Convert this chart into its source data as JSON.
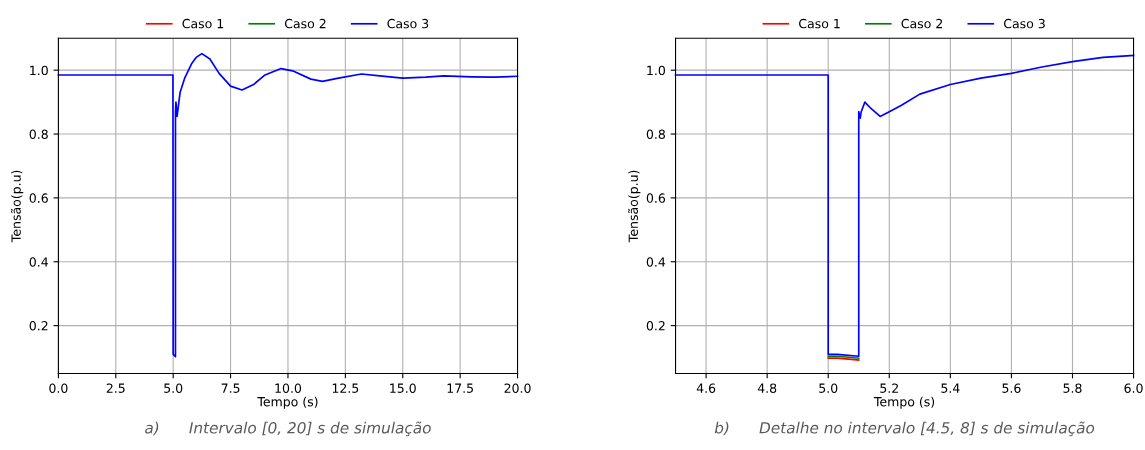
{
  "chart_data": [
    {
      "type": "line",
      "xlabel": "Tempo (s)",
      "ylabel": "Tensão(p.u)",
      "legend": "top",
      "grid": true,
      "line_style": "solid",
      "marker": "none",
      "xlim": [
        0,
        20
      ],
      "xticks": [
        {
          "value": 0,
          "label": "0.0"
        },
        2.5,
        {
          "value": 5,
          "label": "5.0"
        },
        7.5,
        {
          "value": 10,
          "label": "10.0"
        },
        12.5,
        {
          "value": 15,
          "label": "15.0"
        },
        17.5,
        {
          "value": 20,
          "label": "20.0"
        }
      ],
      "ylim": [
        0.05,
        1.1
      ],
      "yticks": [
        0.2,
        0.4,
        0.6,
        0.8,
        {
          "value": 1,
          "label": "1.0"
        }
      ],
      "x": [
        0,
        4.99,
        5.0,
        5.1,
        5.1,
        5.12,
        5.17,
        5.3,
        5.5,
        5.8,
        6.0,
        6.25,
        6.6,
        7.0,
        7.5,
        8.0,
        8.5,
        9.0,
        9.7,
        10.2,
        11.0,
        11.5,
        12.2,
        13.2,
        14.0,
        15.0,
        16.0,
        16.8,
        18.0,
        19.0,
        20.0
      ],
      "series": [
        {
          "name": "Caso 1",
          "color": "#ff0000",
          "values": [
            null,
            null,
            null,
            null,
            null,
            null,
            null,
            null,
            null,
            null,
            null,
            null,
            null,
            null,
            null,
            null,
            null,
            null,
            null,
            null,
            null,
            null,
            null,
            null,
            null,
            null,
            null,
            null,
            null,
            null,
            null
          ]
        },
        {
          "name": "Caso 2",
          "color": "#008000",
          "values": [
            null,
            null,
            null,
            null,
            null,
            null,
            null,
            null,
            null,
            null,
            null,
            null,
            null,
            null,
            null,
            null,
            null,
            null,
            null,
            null,
            null,
            null,
            null,
            null,
            null,
            null,
            null,
            null,
            null,
            null,
            null
          ]
        },
        {
          "name": "Caso 3",
          "color": "#0000ff",
          "values": [
            0.985,
            0.985,
            0.11,
            0.103,
            0.87,
            0.9,
            0.855,
            0.93,
            0.975,
            1.02,
            1.04,
            1.052,
            1.035,
            0.99,
            0.95,
            0.938,
            0.955,
            0.985,
            1.005,
            0.998,
            0.972,
            0.965,
            0.975,
            0.988,
            0.982,
            0.975,
            0.978,
            0.982,
            0.979,
            0.978,
            0.981
          ]
        }
      ],
      "annotations": [
        "a)      Intervalo [0, 20] s de simulação"
      ]
    },
    {
      "type": "line",
      "xlabel": "Tempo (s)",
      "ylabel": "Tensão(p.u)",
      "legend": "top",
      "grid": true,
      "line_style": "solid",
      "marker": "none",
      "xlim": [
        4.5,
        6.0
      ],
      "xticks": [
        4.6,
        4.8,
        {
          "value": 5,
          "label": "5.0"
        },
        5.2,
        5.4,
        5.6,
        5.8,
        {
          "value": 6,
          "label": "6.0"
        }
      ],
      "ylim": [
        0.05,
        1.1
      ],
      "yticks": [
        0.2,
        0.4,
        0.6,
        0.8,
        {
          "value": 1,
          "label": "1.0"
        }
      ],
      "x": [
        4.5,
        5.0,
        5.0,
        5.03,
        5.1,
        5.1,
        5.105,
        5.108,
        5.12,
        5.14,
        5.17,
        5.2,
        5.24,
        5.3,
        5.4,
        5.5,
        5.6,
        5.7,
        5.8,
        5.9,
        6.0
      ],
      "series": [
        {
          "name": "Caso 1",
          "color": "#ff0000",
          "values": [
            null,
            null,
            0.098,
            0.098,
            0.092,
            null,
            null,
            null,
            null,
            null,
            null,
            null,
            null,
            null,
            null,
            null,
            null,
            null,
            null,
            null,
            null
          ]
        },
        {
          "name": "Caso 2",
          "color": "#008000",
          "values": [
            null,
            null,
            0.104,
            0.104,
            0.098,
            null,
            null,
            null,
            null,
            null,
            null,
            null,
            null,
            null,
            null,
            null,
            null,
            null,
            null,
            null,
            null
          ]
        },
        {
          "name": "Caso 3",
          "color": "#0000ff",
          "values": [
            0.985,
            0.985,
            0.11,
            0.11,
            0.104,
            0.87,
            0.85,
            0.87,
            0.9,
            0.88,
            0.855,
            0.87,
            0.89,
            0.925,
            0.955,
            0.975,
            0.99,
            1.01,
            1.027,
            1.04,
            1.046
          ]
        }
      ],
      "annotations": [
        "b)      Detalhe no intervalo [4.5, 8] s de simulação"
      ]
    }
  ]
}
